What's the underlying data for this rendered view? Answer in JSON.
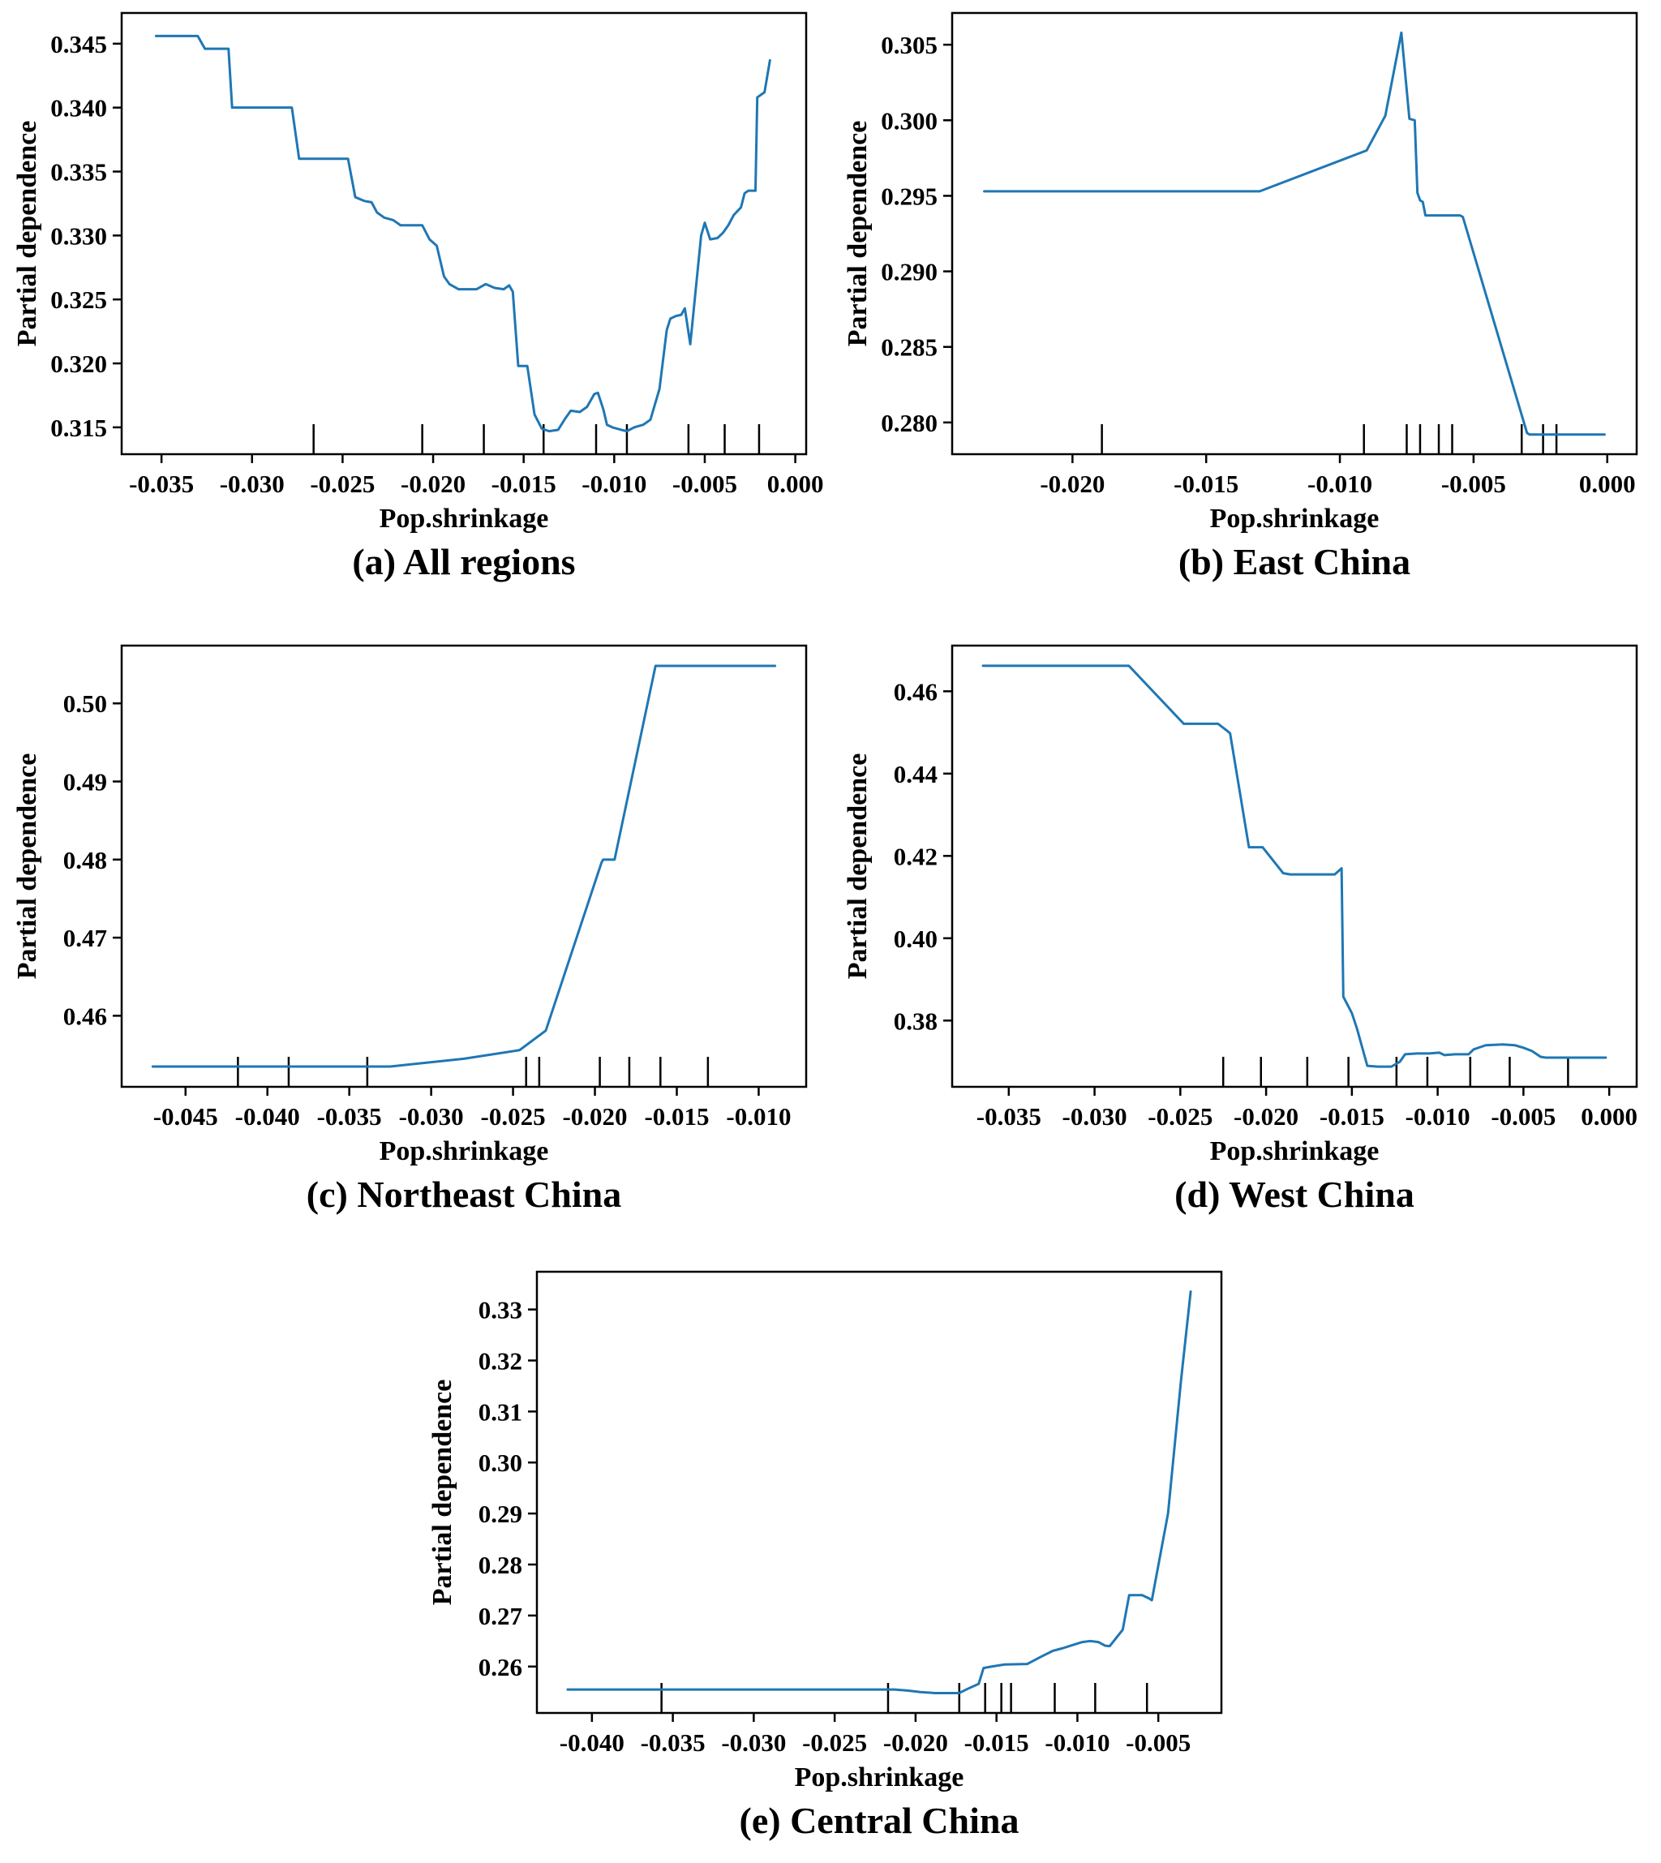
{
  "figure": {
    "background": "#ffffff",
    "axis_color": "#000000",
    "line_color": "#1f77b4"
  },
  "chart_data": [
    {
      "type": "line",
      "id": "a",
      "caption": "(a) All regions",
      "xlabel": "Pop.shrinkage",
      "ylabel": "Partial dependence",
      "legend": "none",
      "grid": false,
      "xlim": [
        -0.0372,
        0.0006
      ],
      "ylim": [
        0.3129,
        0.3474
      ],
      "xticks": [
        -0.035,
        -0.03,
        -0.025,
        -0.02,
        -0.015,
        -0.01,
        -0.005,
        0.0
      ],
      "xtick_labels": [
        "-0.035",
        "-0.030",
        "-0.025",
        "-0.020",
        "-0.015",
        "-0.010",
        "-0.005",
        "0.000"
      ],
      "yticks": [
        0.315,
        0.32,
        0.325,
        0.33,
        0.335,
        0.34,
        0.345
      ],
      "ytick_labels": [
        "0.315",
        "0.320",
        "0.325",
        "0.330",
        "0.335",
        "0.340",
        "0.345"
      ],
      "line": [
        [
          -0.0353,
          0.3456
        ],
        [
          -0.033,
          0.3456
        ],
        [
          -0.0326,
          0.3446
        ],
        [
          -0.0313,
          0.3446
        ],
        [
          -0.0311,
          0.34
        ],
        [
          -0.0278,
          0.34
        ],
        [
          -0.0274,
          0.336
        ],
        [
          -0.0247,
          0.336
        ],
        [
          -0.0243,
          0.333
        ],
        [
          -0.0238,
          0.3327
        ],
        [
          -0.0234,
          0.3326
        ],
        [
          -0.0231,
          0.3318
        ],
        [
          -0.0227,
          0.3314
        ],
        [
          -0.0222,
          0.3312
        ],
        [
          -0.0218,
          0.3308
        ],
        [
          -0.0206,
          0.3308
        ],
        [
          -0.0202,
          0.3297
        ],
        [
          -0.0198,
          0.3292
        ],
        [
          -0.0194,
          0.3268
        ],
        [
          -0.0191,
          0.3262
        ],
        [
          -0.0186,
          0.3258
        ],
        [
          -0.0176,
          0.3258
        ],
        [
          -0.0171,
          0.3262
        ],
        [
          -0.0166,
          0.3259
        ],
        [
          -0.0161,
          0.3258
        ],
        [
          -0.0158,
          0.3261
        ],
        [
          -0.0156,
          0.3256
        ],
        [
          -0.0153,
          0.3198
        ],
        [
          -0.0148,
          0.3198
        ],
        [
          -0.0144,
          0.316
        ],
        [
          -0.014,
          0.3149
        ],
        [
          -0.0136,
          0.3147
        ],
        [
          -0.0131,
          0.3148
        ],
        [
          -0.0127,
          0.3157
        ],
        [
          -0.0124,
          0.3163
        ],
        [
          -0.0119,
          0.3162
        ],
        [
          -0.0115,
          0.3166
        ],
        [
          -0.0111,
          0.3176
        ],
        [
          -0.0109,
          0.3177
        ],
        [
          -0.0106,
          0.3164
        ],
        [
          -0.0104,
          0.3152
        ],
        [
          -0.0101,
          0.315
        ],
        [
          -0.0096,
          0.3148
        ],
        [
          -0.0093,
          0.3147
        ],
        [
          -0.0089,
          0.315
        ],
        [
          -0.0084,
          0.3152
        ],
        [
          -0.008,
          0.3156
        ],
        [
          -0.0075,
          0.318
        ],
        [
          -0.0071,
          0.3226
        ],
        [
          -0.0069,
          0.3235
        ],
        [
          -0.0066,
          0.3237
        ],
        [
          -0.0063,
          0.3238
        ],
        [
          -0.0061,
          0.3243
        ],
        [
          -0.0058,
          0.3215
        ],
        [
          -0.0052,
          0.33
        ],
        [
          -0.005,
          0.331
        ],
        [
          -0.0047,
          0.3297
        ],
        [
          -0.0043,
          0.3298
        ],
        [
          -0.004,
          0.3302
        ],
        [
          -0.0037,
          0.3308
        ],
        [
          -0.0034,
          0.3316
        ],
        [
          -0.003,
          0.3322
        ],
        [
          -0.0028,
          0.3333
        ],
        [
          -0.0026,
          0.3335
        ],
        [
          -0.0022,
          0.3335
        ],
        [
          -0.0021,
          0.3408
        ],
        [
          -0.0017,
          0.3412
        ],
        [
          -0.0014,
          0.3437
        ]
      ],
      "rug_x": [
        -0.0266,
        -0.0206,
        -0.0172,
        -0.0139,
        -0.011,
        -0.0093,
        -0.0059,
        -0.0039,
        -0.002
      ]
    },
    {
      "type": "line",
      "id": "b",
      "caption": "(b) East China",
      "xlabel": "Pop.shrinkage",
      "ylabel": "Partial dependence",
      "legend": "none",
      "grid": false,
      "xlim": [
        -0.0245,
        0.0011
      ],
      "ylim": [
        0.2779,
        0.3071
      ],
      "xticks": [
        -0.02,
        -0.015,
        -0.01,
        -0.005,
        0.0
      ],
      "xtick_labels": [
        "-0.020",
        "-0.015",
        "-0.010",
        "-0.005",
        "0.000"
      ],
      "yticks": [
        0.28,
        0.285,
        0.29,
        0.295,
        0.3,
        0.305
      ],
      "ytick_labels": [
        "0.280",
        "0.285",
        "0.290",
        "0.295",
        "0.300",
        "0.305"
      ],
      "line": [
        [
          -0.0233,
          0.2953
        ],
        [
          -0.013,
          0.2953
        ],
        [
          -0.009,
          0.298
        ],
        [
          -0.0083,
          0.3003
        ],
        [
          -0.0077,
          0.3058
        ],
        [
          -0.0074,
          0.3001
        ],
        [
          -0.0072,
          0.3
        ],
        [
          -0.0071,
          0.2952
        ],
        [
          -0.007,
          0.2947
        ],
        [
          -0.0069,
          0.2946
        ],
        [
          -0.0068,
          0.2937
        ],
        [
          -0.0055,
          0.2937
        ],
        [
          -0.0054,
          0.2936
        ],
        [
          -0.003,
          0.2793
        ],
        [
          -0.0029,
          0.2792
        ],
        [
          -0.0001,
          0.2792
        ]
      ],
      "rug_x": [
        -0.0189,
        -0.0091,
        -0.0075,
        -0.007,
        -0.0063,
        -0.0058,
        -0.0032,
        -0.0024,
        -0.0019
      ]
    },
    {
      "type": "line",
      "id": "c",
      "caption": "(c) Northeast China",
      "xlabel": "Pop.shrinkage",
      "ylabel": "Partial dependence",
      "legend": "none",
      "grid": false,
      "xlim": [
        -0.0489,
        -0.0071
      ],
      "ylim": [
        0.4509,
        0.5074
      ],
      "xticks": [
        -0.045,
        -0.04,
        -0.035,
        -0.03,
        -0.025,
        -0.02,
        -0.015,
        -0.01
      ],
      "xtick_labels": [
        "-0.045",
        "-0.040",
        "-0.035",
        "-0.030",
        "-0.025",
        "-0.020",
        "-0.015",
        "-0.010"
      ],
      "yticks": [
        0.46,
        0.47,
        0.48,
        0.49,
        0.5
      ],
      "ytick_labels": [
        "0.46",
        "0.47",
        "0.48",
        "0.49",
        "0.50"
      ],
      "line": [
        [
          -0.047,
          0.4535
        ],
        [
          -0.0325,
          0.4535
        ],
        [
          -0.028,
          0.4545
        ],
        [
          -0.0246,
          0.4556
        ],
        [
          -0.023,
          0.4581
        ],
        [
          -0.0196,
          0.4796
        ],
        [
          -0.0195,
          0.48
        ],
        [
          -0.0188,
          0.48
        ],
        [
          -0.0163,
          0.5048
        ],
        [
          -0.009,
          0.5048
        ]
      ],
      "rug_x": [
        -0.0418,
        -0.0387,
        -0.0339,
        -0.0242,
        -0.0234,
        -0.0197,
        -0.0179,
        -0.016,
        -0.0131
      ]
    },
    {
      "type": "line",
      "id": "d",
      "caption": "(d) West China",
      "xlabel": "Pop.shrinkage",
      "ylabel": "Partial dependence",
      "legend": "none",
      "grid": false,
      "xlim": [
        -0.0383,
        0.0016
      ],
      "ylim": [
        0.3639,
        0.4711
      ],
      "xticks": [
        -0.035,
        -0.03,
        -0.025,
        -0.02,
        -0.015,
        -0.01,
        -0.005,
        0.0
      ],
      "xtick_labels": [
        "-0.035",
        "-0.030",
        "-0.025",
        "-0.020",
        "-0.015",
        "-0.010",
        "-0.005",
        "0.000"
      ],
      "yticks": [
        0.38,
        0.4,
        0.42,
        0.44,
        0.46
      ],
      "ytick_labels": [
        "0.38",
        "0.40",
        "0.42",
        "0.44",
        "0.46"
      ],
      "line": [
        [
          -0.0365,
          0.4662
        ],
        [
          -0.028,
          0.4662
        ],
        [
          -0.0248,
          0.4521
        ],
        [
          -0.0228,
          0.4521
        ],
        [
          -0.0223,
          0.4505
        ],
        [
          -0.0221,
          0.4498
        ],
        [
          -0.021,
          0.4221
        ],
        [
          -0.0202,
          0.4221
        ],
        [
          -0.019,
          0.4158
        ],
        [
          -0.0186,
          0.4155
        ],
        [
          -0.016,
          0.4155
        ],
        [
          -0.0156,
          0.417
        ],
        [
          -0.0155,
          0.3858
        ],
        [
          -0.015,
          0.3818
        ],
        [
          -0.0147,
          0.378
        ],
        [
          -0.0141,
          0.369
        ],
        [
          -0.0135,
          0.3688
        ],
        [
          -0.0127,
          0.3688
        ],
        [
          -0.0122,
          0.37
        ],
        [
          -0.0119,
          0.3718
        ],
        [
          -0.0112,
          0.372
        ],
        [
          -0.0105,
          0.372
        ],
        [
          -0.0099,
          0.3722
        ],
        [
          -0.0096,
          0.3716
        ],
        [
          -0.009,
          0.3718
        ],
        [
          -0.0082,
          0.3718
        ],
        [
          -0.0079,
          0.373
        ],
        [
          -0.0072,
          0.374
        ],
        [
          -0.0062,
          0.3742
        ],
        [
          -0.0055,
          0.374
        ],
        [
          -0.005,
          0.3734
        ],
        [
          -0.0045,
          0.3726
        ],
        [
          -0.004,
          0.3712
        ],
        [
          -0.0037,
          0.371
        ],
        [
          -0.0002,
          0.371
        ]
      ],
      "rug_x": [
        -0.0225,
        -0.0203,
        -0.0176,
        -0.0152,
        -0.0124,
        -0.0106,
        -0.0081,
        -0.0058,
        -0.0024
      ]
    },
    {
      "type": "line",
      "id": "e",
      "caption": "(e) Central China",
      "xlabel": "Pop.shrinkage",
      "ylabel": "Partial dependence",
      "legend": "none",
      "grid": false,
      "xlim": [
        -0.0434,
        -0.0011
      ],
      "ylim": [
        0.2509,
        0.3374
      ],
      "xticks": [
        -0.04,
        -0.035,
        -0.03,
        -0.025,
        -0.02,
        -0.015,
        -0.01,
        -0.005
      ],
      "xtick_labels": [
        "-0.040",
        "-0.035",
        "-0.030",
        "-0.025",
        "-0.020",
        "-0.015",
        "-0.010",
        "-0.005"
      ],
      "yticks": [
        0.26,
        0.27,
        0.28,
        0.29,
        0.3,
        0.31,
        0.32,
        0.33
      ],
      "ytick_labels": [
        "0.26",
        "0.27",
        "0.28",
        "0.29",
        "0.30",
        "0.31",
        "0.32",
        "0.33"
      ],
      "line": [
        [
          -0.0415,
          0.2555
        ],
        [
          -0.0213,
          0.2555
        ],
        [
          -0.0205,
          0.2553
        ],
        [
          -0.0197,
          0.255
        ],
        [
          -0.0188,
          0.2548
        ],
        [
          -0.0173,
          0.2548
        ],
        [
          -0.0168,
          0.2556
        ],
        [
          -0.0161,
          0.2566
        ],
        [
          -0.0158,
          0.2597
        ],
        [
          -0.0153,
          0.26
        ],
        [
          -0.0149,
          0.2602
        ],
        [
          -0.0145,
          0.2604
        ],
        [
          -0.0131,
          0.2605
        ],
        [
          -0.0122,
          0.262
        ],
        [
          -0.0115,
          0.2631
        ],
        [
          -0.0109,
          0.2636
        ],
        [
          -0.0102,
          0.2643
        ],
        [
          -0.0097,
          0.2648
        ],
        [
          -0.0092,
          0.265
        ],
        [
          -0.0087,
          0.2648
        ],
        [
          -0.0083,
          0.2641
        ],
        [
          -0.008,
          0.264
        ],
        [
          -0.0072,
          0.2672
        ],
        [
          -0.0068,
          0.274
        ],
        [
          -0.006,
          0.274
        ],
        [
          -0.0056,
          0.2734
        ],
        [
          -0.0054,
          0.273
        ],
        [
          -0.0044,
          0.29
        ],
        [
          -0.0036,
          0.316
        ],
        [
          -0.003,
          0.3335
        ]
      ],
      "rug_x": [
        -0.0357,
        -0.0217,
        -0.0173,
        -0.0157,
        -0.0147,
        -0.0141,
        -0.0114,
        -0.0089,
        -0.0057
      ]
    }
  ]
}
